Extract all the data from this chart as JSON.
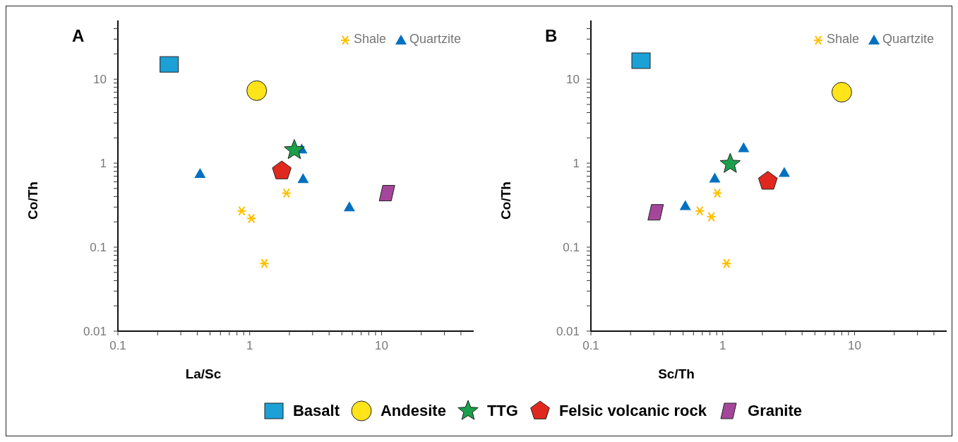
{
  "chart_data": [
    {
      "type": "scatter",
      "title": "A",
      "xlabel": "La/Sc",
      "ylabel": "Co/Th",
      "log": "xy",
      "grid": false,
      "legend": "bottom",
      "xlim": [
        0.1,
        50
      ],
      "ylim": [
        0.01,
        50
      ],
      "xticks": [
        0.1,
        {
          "value": 0.2,
          "label": null
        },
        {
          "value": 0.3,
          "label": null
        },
        {
          "value": 0.4,
          "label": null
        },
        {
          "value": 0.5,
          "label": null
        },
        {
          "value": 0.6,
          "label": null
        },
        {
          "value": 0.7,
          "label": null
        },
        {
          "value": 0.8,
          "label": null
        },
        {
          "value": 0.9,
          "label": null
        },
        1,
        {
          "value": 2,
          "label": null
        },
        {
          "value": 3,
          "label": null
        },
        {
          "value": 4,
          "label": null
        },
        {
          "value": 5,
          "label": null
        },
        {
          "value": 6,
          "label": null
        },
        {
          "value": 7,
          "label": null
        },
        {
          "value": 8,
          "label": null
        },
        {
          "value": 9,
          "label": null
        },
        10,
        {
          "value": 20,
          "label": null
        },
        {
          "value": 30,
          "label": null
        },
        {
          "value": 40,
          "label": null
        }
      ],
      "yticks": [
        0.01,
        {
          "value": 0.02,
          "label": null
        },
        {
          "value": 0.03,
          "label": null
        },
        {
          "value": 0.04,
          "label": null
        },
        {
          "value": 0.05,
          "label": null
        },
        {
          "value": 0.06,
          "label": null
        },
        {
          "value": 0.07,
          "label": null
        },
        {
          "value": 0.08,
          "label": null
        },
        {
          "value": 0.09,
          "label": null
        },
        0.1,
        {
          "value": 0.2,
          "label": null
        },
        {
          "value": 0.3,
          "label": null
        },
        {
          "value": 0.4,
          "label": null
        },
        {
          "value": 0.5,
          "label": null
        },
        {
          "value": 0.6,
          "label": null
        },
        {
          "value": 0.7,
          "label": null
        },
        {
          "value": 0.8,
          "label": null
        },
        {
          "value": 0.9,
          "label": null
        },
        1,
        {
          "value": 2,
          "label": null
        },
        {
          "value": 3,
          "label": null
        },
        {
          "value": 4,
          "label": null
        },
        {
          "value": 5,
          "label": null
        },
        {
          "value": 6,
          "label": null
        },
        {
          "value": 7,
          "label": null
        },
        {
          "value": 8,
          "label": null
        },
        {
          "value": 9,
          "label": null
        },
        10,
        {
          "value": 20,
          "label": null
        },
        {
          "value": 30,
          "label": null
        },
        {
          "value": 40,
          "label": null
        }
      ],
      "series": [
        {
          "name": "Shale",
          "color": "#ffc000",
          "marker": "cross",
          "x": [
            0.87,
            1.03,
            1.9,
            1.29
          ],
          "values": [
            0.27,
            0.22,
            0.44,
            0.064
          ]
        },
        {
          "name": "Quartzite",
          "color": "#0070c0",
          "marker": "triangle",
          "x": [
            0.42,
            2.48,
            2.54,
            5.7
          ],
          "values": [
            0.75,
            1.47,
            0.65,
            0.3
          ]
        },
        {
          "name": "Basalt",
          "color": "#1ba1d6",
          "marker": "square",
          "x": [
            0.245
          ],
          "values": [
            15
          ]
        },
        {
          "name": "Andesite",
          "color": "#ffe41a",
          "marker": "circle",
          "x": [
            1.13
          ],
          "values": [
            7.3
          ]
        },
        {
          "name": "TTG",
          "color": "#1aa04a",
          "marker": "star",
          "x": [
            2.18
          ],
          "values": [
            1.43
          ]
        },
        {
          "name": "Felsic volcanic rock",
          "color": "#e0281e",
          "x": [
            1.75
          ],
          "values": [
            0.81
          ]
        },
        {
          "name": "Granite",
          "color": "#a4479a",
          "marker": "diamond",
          "x": [
            11
          ],
          "values": [
            0.44
          ]
        }
      ]
    },
    {
      "type": "scatter",
      "title": "B",
      "xlabel": "Sc/Th",
      "ylabel": "Co/Th",
      "log": "xy",
      "grid": false,
      "legend": "top right",
      "xlim": [
        0.1,
        50
      ],
      "ylim": [
        0.01,
        50
      ],
      "xticks": [
        0.1,
        {
          "value": 0.2,
          "label": null
        },
        {
          "value": 0.3,
          "label": null
        },
        {
          "value": 0.4,
          "label": null
        },
        {
          "value": 0.5,
          "label": null
        },
        {
          "value": 0.6,
          "label": null
        },
        {
          "value": 0.7,
          "label": null
        },
        {
          "value": 0.8,
          "label": null
        },
        {
          "value": 0.9,
          "label": null
        },
        1,
        {
          "value": 2,
          "label": null
        },
        {
          "value": 3,
          "label": null
        },
        {
          "value": 4,
          "label": null
        },
        {
          "value": 5,
          "label": null
        },
        {
          "value": 6,
          "label": null
        },
        {
          "value": 7,
          "label": null
        },
        {
          "value": 8,
          "label": null
        },
        {
          "value": 9,
          "label": null
        },
        10,
        {
          "value": 20,
          "label": null
        },
        {
          "value": 30,
          "label": null
        },
        {
          "value": 40,
          "label": null
        }
      ],
      "yticks": [
        0.01,
        {
          "value": 0.02,
          "label": null
        },
        {
          "value": 0.03,
          "label": null
        },
        {
          "value": 0.04,
          "label": null
        },
        {
          "value": 0.05,
          "label": null
        },
        {
          "value": 0.06,
          "label": null
        },
        {
          "value": 0.07,
          "label": null
        },
        {
          "value": 0.08,
          "label": null
        },
        {
          "value": 0.09,
          "label": null
        },
        0.1,
        {
          "value": 0.2,
          "label": null
        },
        {
          "value": 0.3,
          "label": null
        },
        {
          "value": 0.4,
          "label": null
        },
        {
          "value": 0.5,
          "label": null
        },
        {
          "value": 0.6,
          "label": null
        },
        {
          "value": 0.7,
          "label": null
        },
        {
          "value": 0.8,
          "label": null
        },
        {
          "value": 0.9,
          "label": null
        },
        1,
        {
          "value": 2,
          "label": null
        },
        {
          "value": 3,
          "label": null
        },
        {
          "value": 4,
          "label": null
        },
        {
          "value": 5,
          "label": null
        },
        {
          "value": 6,
          "label": null
        },
        {
          "value": 7,
          "label": null
        },
        {
          "value": 8,
          "label": null
        },
        {
          "value": 9,
          "label": null
        },
        10,
        {
          "value": 20,
          "label": null
        },
        {
          "value": 30,
          "label": null
        },
        {
          "value": 40,
          "label": null
        }
      ],
      "series": [
        {
          "name": "Shale",
          "color": "#ffc000",
          "marker": "cross",
          "x": [
            0.67,
            0.82,
            0.91,
            1.07
          ],
          "values": [
            0.27,
            0.23,
            0.44,
            0.064
          ]
        },
        {
          "name": "Quartzite",
          "color": "#0070c0",
          "marker": "triangle",
          "x": [
            0.52,
            0.87,
            1.44,
            2.93
          ],
          "values": [
            0.31,
            0.66,
            1.52,
            0.77
          ]
        },
        {
          "color": "#1ba1d6",
          "marker": "square",
          "x": [
            0.24
          ],
          "values": [
            16.6
          ]
        },
        {
          "color": "#ffe41a",
          "marker": "circle",
          "x": [
            8.0
          ],
          "values": [
            7.0
          ]
        },
        {
          "color": "#1aa04a",
          "marker": "star",
          "x": [
            1.14
          ],
          "values": [
            0.98
          ]
        },
        {
          "color": "#e0281e",
          "x": [
            2.2
          ],
          "values": [
            0.61
          ]
        },
        {
          "color": "#a4479a",
          "marker": "diamond",
          "x": [
            0.31
          ],
          "values": [
            0.26
          ]
        }
      ]
    }
  ]
}
